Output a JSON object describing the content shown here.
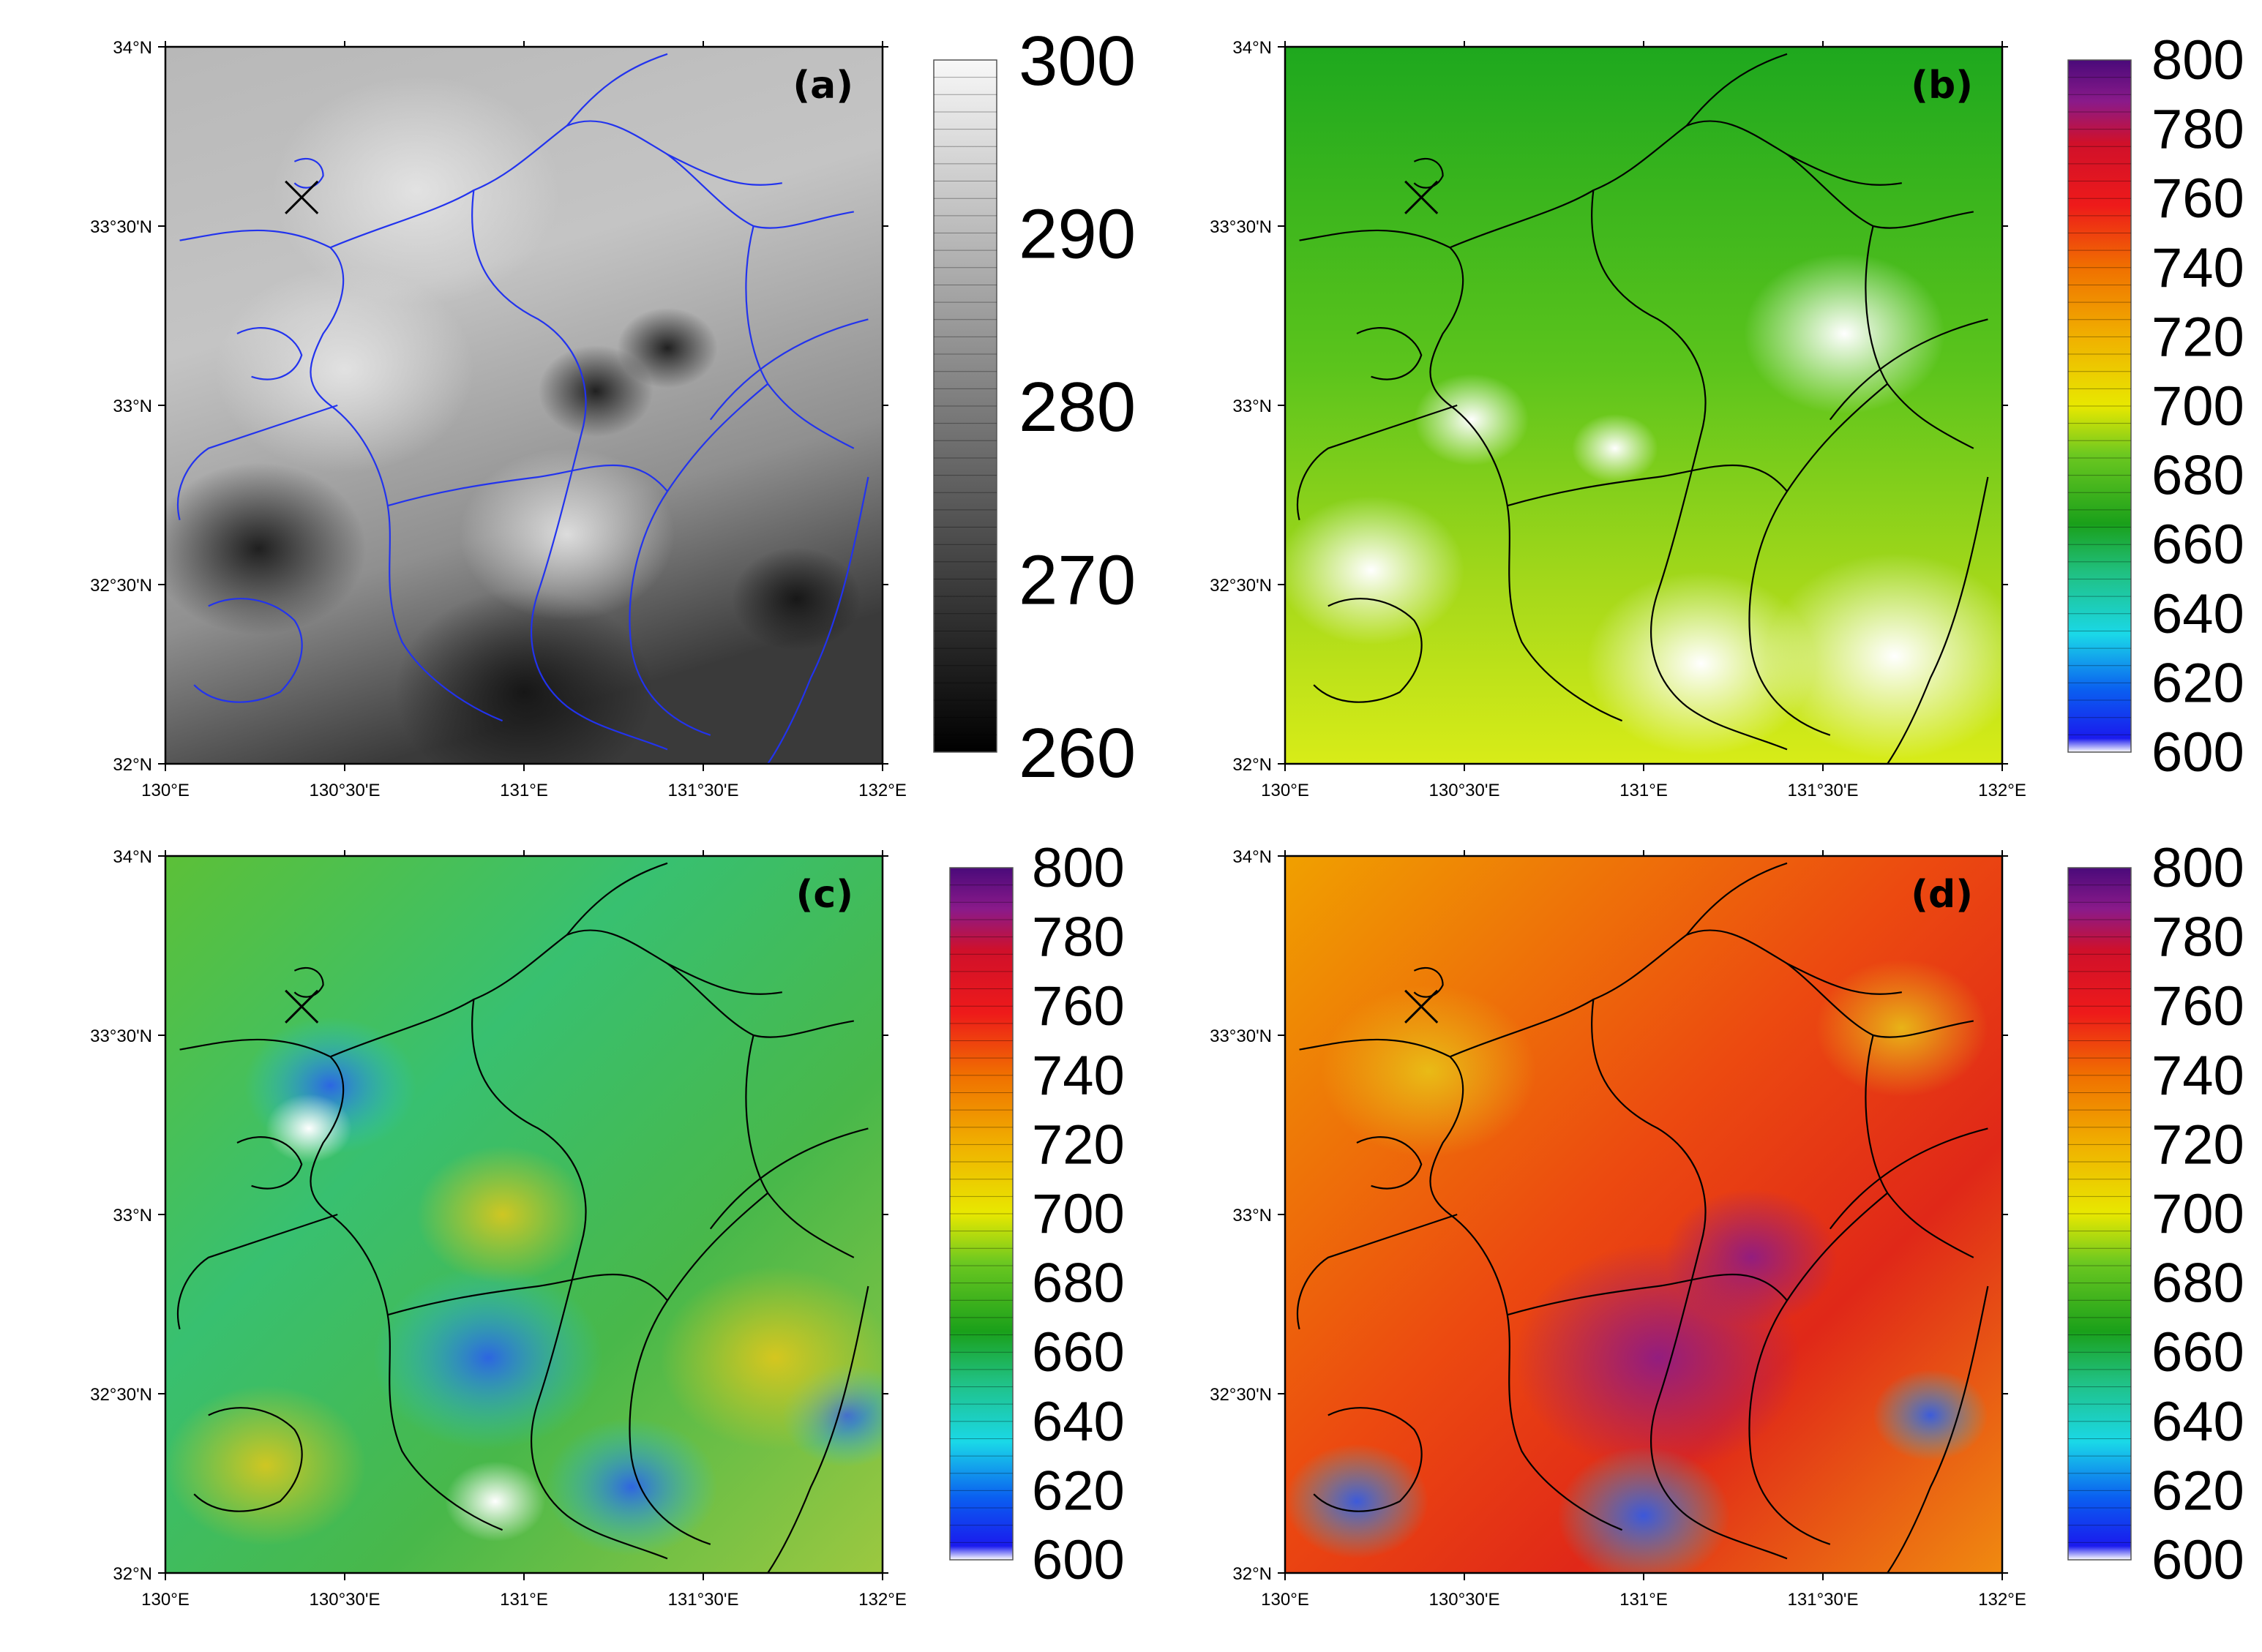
{
  "panels": [
    {
      "id": "a",
      "letter": "(a)",
      "colormap": "gray",
      "border_color": "#2233ee",
      "colorbar_ticks": [
        "300",
        "290",
        "280",
        "270",
        "260"
      ],
      "colorbar_range": [
        260,
        300
      ],
      "x_ticks": [
        "130°E",
        "130°30'E",
        "131°E",
        "131°30'E",
        "132°E"
      ],
      "y_ticks": [
        "34°N",
        "33°30'N",
        "33°N",
        "32°30'N",
        "32°N"
      ],
      "marker": "x-icon"
    },
    {
      "id": "b",
      "letter": "(b)",
      "colormap": "rainbow",
      "border_color": "#000000",
      "colorbar_ticks": [
        "800",
        "780",
        "760",
        "740",
        "720",
        "700",
        "680",
        "660",
        "640",
        "620",
        "600"
      ],
      "colorbar_range": [
        600,
        800
      ],
      "x_ticks": [
        "130°E",
        "130°30'E",
        "131°E",
        "131°30'E",
        "132°E"
      ],
      "y_ticks": [
        "34°N",
        "33°30'N",
        "33°N",
        "32°30'N",
        "32°N"
      ],
      "marker": "x-icon"
    },
    {
      "id": "c",
      "letter": "(c)",
      "colormap": "rainbow",
      "border_color": "#000000",
      "colorbar_ticks": [
        "800",
        "780",
        "760",
        "740",
        "720",
        "700",
        "680",
        "660",
        "640",
        "620",
        "600"
      ],
      "colorbar_range": [
        600,
        800
      ],
      "x_ticks": [
        "130°E",
        "130°30'E",
        "131°E",
        "131°30'E",
        "132°E"
      ],
      "y_ticks": [
        "34°N",
        "33°30'N",
        "33°N",
        "32°30'N",
        "32°N"
      ],
      "marker": "x-icon"
    },
    {
      "id": "d",
      "letter": "(d)",
      "colormap": "rainbow",
      "border_color": "#000000",
      "colorbar_ticks": [
        "800",
        "780",
        "760",
        "740",
        "720",
        "700",
        "680",
        "660",
        "640",
        "620",
        "600"
      ],
      "colorbar_range": [
        600,
        800
      ],
      "x_ticks": [
        "130°E",
        "130°30'E",
        "131°E",
        "131°30'E",
        "132°E"
      ],
      "y_ticks": [
        "34°N",
        "33°30'N",
        "33°N",
        "32°30'N",
        "32°N"
      ],
      "marker": "x-icon"
    }
  ]
}
